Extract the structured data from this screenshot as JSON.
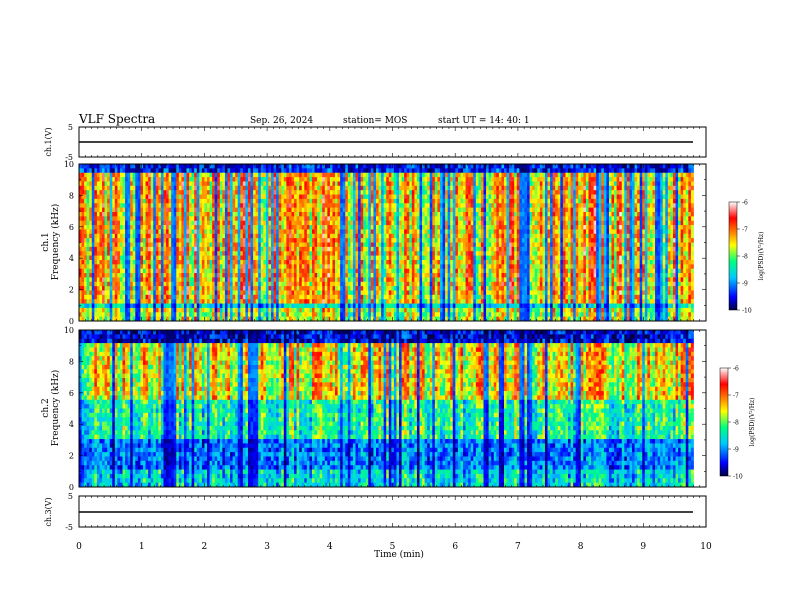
{
  "header": {
    "title": "VLF Spectra",
    "date": "Sep. 26, 2024",
    "station": "station= MOS",
    "start": "start  UT  =   14: 40: 1"
  },
  "chart_data": [
    {
      "type": "line",
      "ylabel": "ch.1(V)",
      "ylim": [
        -5,
        5
      ],
      "yticks": [
        "5",
        "-5"
      ],
      "xlim": [
        0,
        10
      ],
      "series": [
        {
          "x": [
            0,
            9.8
          ],
          "y": [
            0,
            0
          ]
        }
      ]
    },
    {
      "type": "heatmap",
      "ylabel": "ch.1\nFrequency (kHz)",
      "xlim": [
        0,
        10
      ],
      "ylim": [
        0,
        10
      ],
      "yticks": [
        "0",
        "2",
        "4",
        "6",
        "8",
        "10"
      ],
      "colorbar": {
        "label": "log(PSD)(V²/Hz)",
        "range": [
          -10,
          -6
        ],
        "ticks": [
          "-6",
          "-7",
          "-8",
          "-9",
          "-10"
        ]
      }
    },
    {
      "type": "heatmap",
      "ylabel": "ch.2\nFrequency (kHz)",
      "xlim": [
        0,
        10
      ],
      "ylim": [
        0,
        10
      ],
      "yticks": [
        "0",
        "2",
        "4",
        "6",
        "8",
        "10"
      ],
      "colorbar": {
        "label": "log(PSD)(V²/Hz)",
        "range": [
          -10,
          -6
        ],
        "ticks": [
          "-6",
          "-7",
          "-8",
          "-9",
          "-10"
        ]
      }
    },
    {
      "type": "line",
      "ylabel": "ch.3(V)",
      "ylim": [
        -5,
        5
      ],
      "yticks": [
        "5",
        "-5"
      ],
      "xlim": [
        0,
        10
      ],
      "series": [
        {
          "x": [
            0,
            9.8
          ],
          "y": [
            0,
            0
          ]
        }
      ]
    }
  ],
  "xaxis": {
    "label": "Time  (min)",
    "ticks": [
      "0",
      "1",
      "2",
      "3",
      "4",
      "5",
      "6",
      "7",
      "8",
      "9",
      "10"
    ]
  },
  "colors": {
    "colormap": [
      "#000040",
      "#0000ff",
      "#00c8ff",
      "#00ff80",
      "#ffff00",
      "#ff8000",
      "#ff0000",
      "#ffffff"
    ]
  }
}
